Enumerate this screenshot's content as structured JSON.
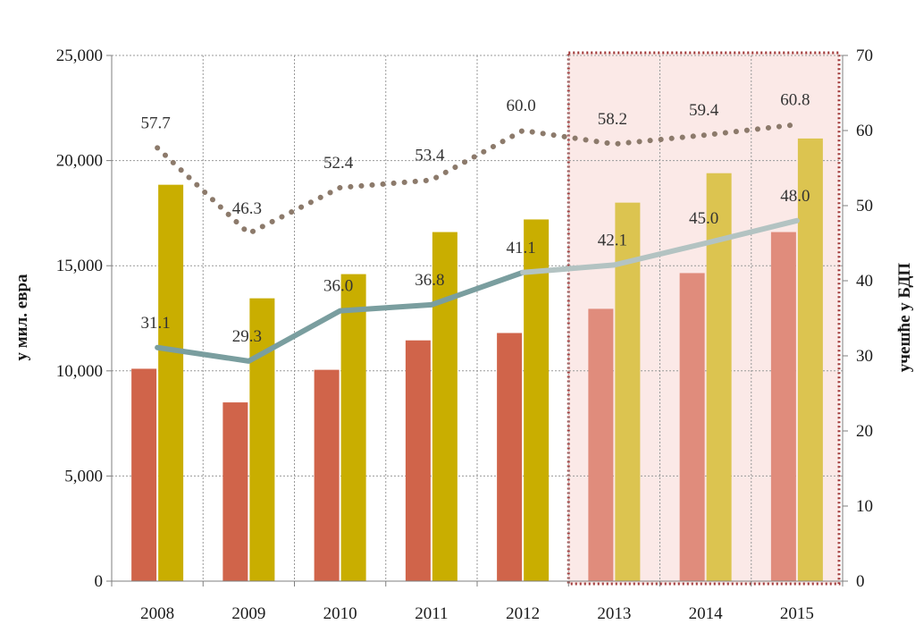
{
  "chart_data": {
    "type": "bar",
    "title": "",
    "categories": [
      "2008",
      "2009",
      "2010",
      "2011",
      "2012",
      "2013",
      "2014",
      "2015"
    ],
    "projection_start_index": 5,
    "ylabel": "у мил. евра",
    "ylabel_right": "учешће у БДП",
    "ylim": [
      0,
      25000
    ],
    "ylim_right": [
      0,
      70
    ],
    "yticks": [
      "0",
      "5,000",
      "10,000",
      "15,000",
      "20,000",
      "25,000"
    ],
    "yticks_right": [
      "0",
      "10",
      "20",
      "30",
      "40",
      "50",
      "60",
      "70"
    ],
    "grid": true,
    "legend": "none",
    "series": [
      {
        "type": "bar",
        "axis": "left",
        "color": "#d0644a",
        "color_projected": "#e08c7c",
        "values": [
          10100,
          8500,
          10050,
          11450,
          11800,
          12950,
          14650,
          16600
        ]
      },
      {
        "type": "bar",
        "axis": "left",
        "color": "#c9ae00",
        "color_projected": "#dcc450",
        "values": [
          18850,
          13450,
          14600,
          16600,
          17200,
          18000,
          19400,
          21050
        ]
      },
      {
        "type": "line",
        "axis": "right",
        "style": "solid",
        "color": "#7a9e9f",
        "color_projected": "#b3c3c2",
        "values": [
          31.1,
          29.3,
          36.0,
          36.8,
          41.1,
          42.1,
          45.0,
          48.0
        ],
        "labels": [
          "31.1",
          "29.3",
          "36.0",
          "36.8",
          "41.1",
          "42.1",
          "45.0",
          "48.0"
        ]
      },
      {
        "type": "line",
        "axis": "right",
        "style": "dotted",
        "color": "#8c7a6b",
        "values": [
          57.7,
          46.3,
          52.4,
          53.4,
          60.0,
          58.2,
          59.4,
          60.8
        ],
        "labels": [
          "57.7",
          "46.3",
          "52.4",
          "53.4",
          "60.0",
          "58.2",
          "59.4",
          "60.8"
        ]
      }
    ],
    "highlight": {
      "from_index": 5,
      "to_index": 7,
      "fill": "#fbe9e7",
      "border": "#a13a3a"
    }
  }
}
